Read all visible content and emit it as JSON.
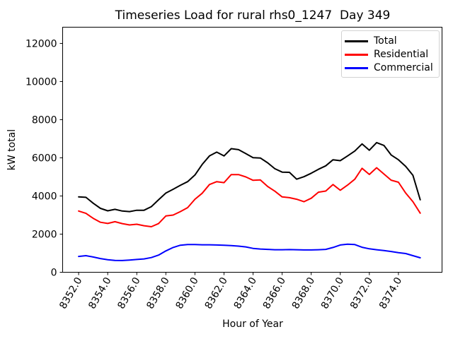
{
  "chart_data": {
    "type": "line",
    "title": "Timeseries Load for rural rhs0_1247  Day 349",
    "xlabel": "Hour of Year",
    "ylabel": "kW total",
    "grid": false,
    "legend_position": "upper right",
    "xlim": [
      8350.9,
      8377.0
    ],
    "ylim": [
      0,
      12850
    ],
    "xtick_labels": [
      "8352.0",
      "8354.0",
      "8356.0",
      "8358.0",
      "8360.0",
      "8362.0",
      "8364.0",
      "8366.0",
      "8368.0",
      "8370.0",
      "8372.0",
      "8374.0"
    ],
    "xtick_values": [
      8352,
      8354,
      8356,
      8358,
      8360,
      8362,
      8364,
      8366,
      8368,
      8370,
      8372,
      8374
    ],
    "ytick_labels": [
      "0",
      "2000",
      "4000",
      "6000",
      "8000",
      "10000",
      "12000"
    ],
    "ytick_values": [
      0,
      2000,
      4000,
      6000,
      8000,
      10000,
      12000
    ],
    "x": [
      8352.0,
      8352.5,
      8353.0,
      8353.5,
      8354.0,
      8354.5,
      8355.0,
      8355.5,
      8356.0,
      8356.5,
      8357.0,
      8357.5,
      8358.0,
      8358.5,
      8359.0,
      8359.5,
      8360.0,
      8360.5,
      8361.0,
      8361.5,
      8362.0,
      8362.5,
      8363.0,
      8363.5,
      8364.0,
      8364.5,
      8365.0,
      8365.5,
      8366.0,
      8366.5,
      8367.0,
      8367.5,
      8368.0,
      8368.5,
      8369.0,
      8369.5,
      8370.0,
      8370.5,
      8371.0,
      8371.5,
      8372.0,
      8372.5,
      8373.0,
      8373.5,
      8374.0,
      8374.5,
      8375.0,
      8375.5
    ],
    "series": [
      {
        "name": "Total",
        "color": "#000000",
        "values": [
          3950,
          3930,
          3620,
          3350,
          3220,
          3300,
          3210,
          3180,
          3250,
          3250,
          3440,
          3800,
          4150,
          4350,
          4560,
          4750,
          5100,
          5650,
          6100,
          6300,
          6100,
          6480,
          6430,
          6220,
          6010,
          5990,
          5740,
          5430,
          5250,
          5240,
          4880,
          5010,
          5190,
          5400,
          5580,
          5900,
          5850,
          6100,
          6360,
          6730,
          6400,
          6800,
          6650,
          6150,
          5900,
          5550,
          5080,
          3800
        ]
      },
      {
        "name": "Residential",
        "color": "#ff0000",
        "values": [
          3210,
          3090,
          2830,
          2620,
          2560,
          2650,
          2550,
          2480,
          2520,
          2440,
          2390,
          2550,
          2950,
          3000,
          3180,
          3390,
          3830,
          4140,
          4600,
          4750,
          4700,
          5120,
          5120,
          5000,
          4820,
          4840,
          4500,
          4250,
          3950,
          3910,
          3830,
          3700,
          3880,
          4200,
          4260,
          4600,
          4300,
          4570,
          4880,
          5450,
          5130,
          5480,
          5150,
          4830,
          4720,
          4150,
          3700,
          3100
        ]
      },
      {
        "name": "Commercial",
        "color": "#0000ff",
        "values": [
          830,
          870,
          800,
          720,
          660,
          620,
          615,
          640,
          670,
          700,
          770,
          900,
          1120,
          1300,
          1420,
          1450,
          1450,
          1440,
          1440,
          1430,
          1420,
          1400,
          1370,
          1330,
          1250,
          1220,
          1200,
          1180,
          1180,
          1190,
          1180,
          1170,
          1170,
          1180,
          1200,
          1300,
          1430,
          1470,
          1450,
          1310,
          1230,
          1180,
          1140,
          1090,
          1030,
          980,
          870,
          760
        ]
      }
    ]
  },
  "style": {
    "background": "#ffffff",
    "axis_color": "#000000",
    "legend_border": "#d2d2d2",
    "tick_label_rotation_deg": 60
  }
}
